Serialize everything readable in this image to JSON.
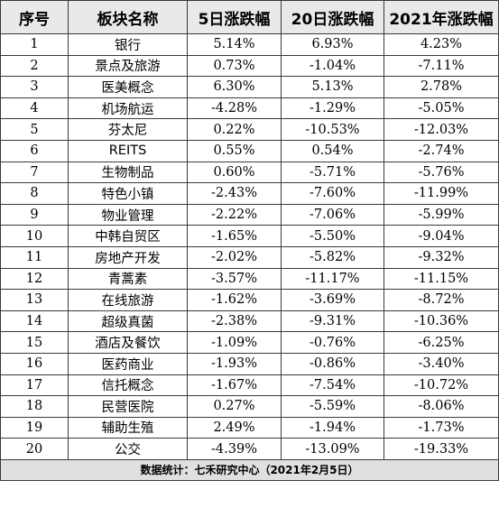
{
  "table": {
    "headers": [
      "序号",
      "板块名称",
      "5日涨跌幅",
      "20日涨跌幅",
      "2021年涨跌幅"
    ],
    "rows": [
      [
        "1",
        "银行",
        "5.14%",
        "6.93%",
        "4.23%"
      ],
      [
        "2",
        "景点及旅游",
        "0.73%",
        "-1.04%",
        "-7.11%"
      ],
      [
        "3",
        "医美概念",
        "6.30%",
        "5.13%",
        "2.78%"
      ],
      [
        "4",
        "机场航运",
        "-4.28%",
        "-1.29%",
        "-5.05%"
      ],
      [
        "5",
        "芬太尼",
        "0.22%",
        "-10.53%",
        "-12.03%"
      ],
      [
        "6",
        "REITS",
        "0.55%",
        "0.54%",
        "-2.74%"
      ],
      [
        "7",
        "生物制品",
        "0.60%",
        "-5.71%",
        "-5.76%"
      ],
      [
        "8",
        "特色小镇",
        "-2.43%",
        "-7.60%",
        "-11.99%"
      ],
      [
        "9",
        "物业管理",
        "-2.22%",
        "-7.06%",
        "-5.99%"
      ],
      [
        "10",
        "中韩自贸区",
        "-1.65%",
        "-5.50%",
        "-9.04%"
      ],
      [
        "11",
        "房地产开发",
        "-2.02%",
        "-5.82%",
        "-9.32%"
      ],
      [
        "12",
        "青蒿素",
        "-3.57%",
        "-11.17%",
        "-11.15%"
      ],
      [
        "13",
        "在线旅游",
        "-1.62%",
        "-3.69%",
        "-8.72%"
      ],
      [
        "14",
        "超级真菌",
        "-2.38%",
        "-9.31%",
        "-10.36%"
      ],
      [
        "15",
        "酒店及餐饮",
        "-1.09%",
        "-0.76%",
        "-6.25%"
      ],
      [
        "16",
        "医药商业",
        "-1.93%",
        "-0.86%",
        "-3.40%"
      ],
      [
        "17",
        "信托概念",
        "-1.67%",
        "-7.54%",
        "-10.72%"
      ],
      [
        "18",
        "民营医院",
        "0.27%",
        "-5.59%",
        "-8.06%"
      ],
      [
        "19",
        "辅助生殖",
        "2.49%",
        "-1.94%",
        "-1.73%"
      ],
      [
        "20",
        "公交",
        "-4.39%",
        "-13.09%",
        "-19.33%"
      ]
    ],
    "footer": "数据统计：七禾研究中心（2021年2月5日）"
  }
}
